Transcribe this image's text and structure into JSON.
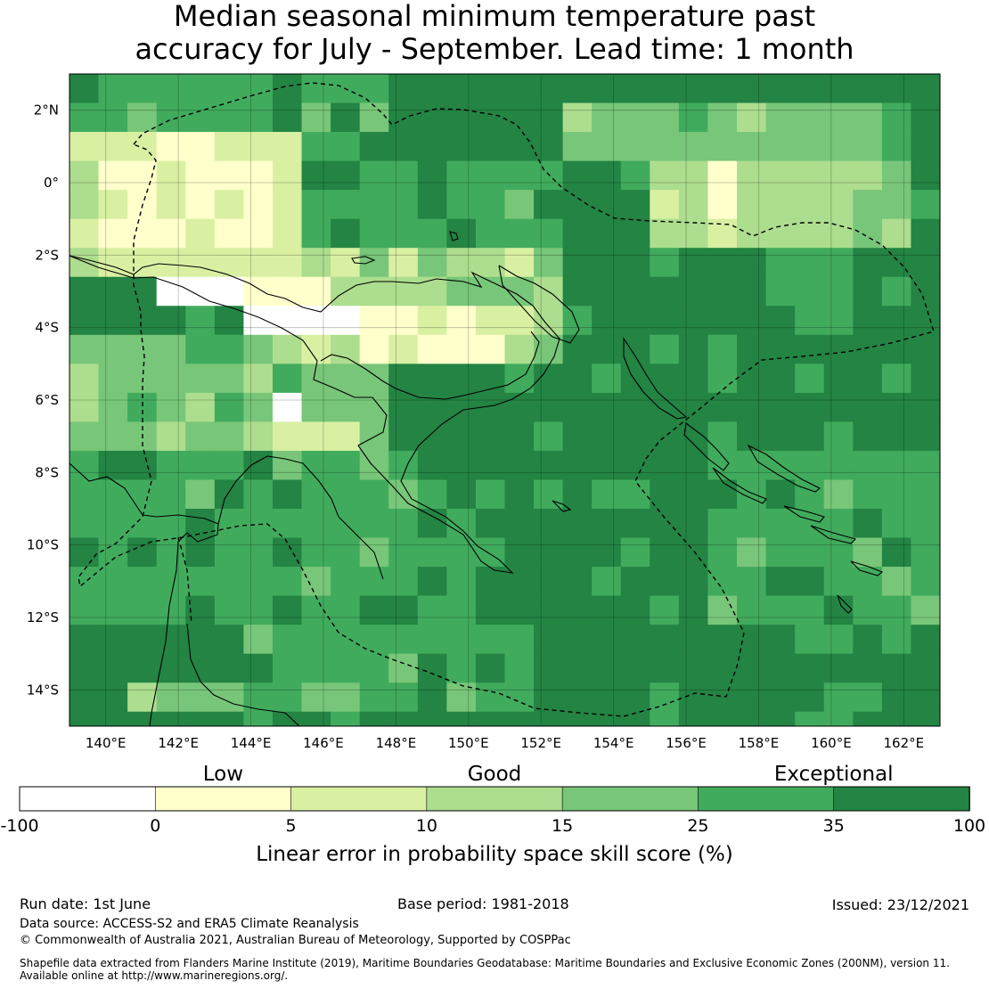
{
  "title_line1": "Median seasonal minimum temperature past",
  "title_line2": "accuracy for July - September. Lead time: 1 month",
  "map": {
    "lat_labels": [
      "2°N",
      "0°",
      "2°S",
      "4°S",
      "6°S",
      "8°S",
      "10°S",
      "12°S",
      "14°S"
    ],
    "lon_labels": [
      "140°E",
      "142°E",
      "144°E",
      "146°E",
      "148°E",
      "150°E",
      "152°E",
      "154°E",
      "156°E",
      "158°E",
      "160°E",
      "162°E"
    ],
    "lon_range": [
      139.0,
      163.0
    ],
    "lat_range": [
      -15.0,
      3.0
    ]
  },
  "legend": {
    "categories": [
      "Low",
      "Good",
      "Exceptional"
    ],
    "ticks": [
      "-100",
      "0",
      "5",
      "10",
      "15",
      "25",
      "35",
      "100"
    ],
    "colors": [
      "#ffffff",
      "#ffffcc",
      "#d9f0a3",
      "#addd8e",
      "#78c679",
      "#41ab5d",
      "#238443"
    ],
    "label": "Linear error in probability space skill score (%)"
  },
  "footer": {
    "run_date": "Run date: 1st June",
    "base_period": "Base period: 1981-2018",
    "issued": "Issued: 23/12/2021",
    "data_source": "Data source: ACCESS-S2 and ERA5 Climate Reanalysis",
    "copyright": "© Commonwealth of Australia 2021, Australian Bureau of Meteorology, Supported by COSPPac",
    "shapefile_line1": "Shapefile data extracted from Flanders Marine Institute (2019), Maritime Boundaries Geodatabase: Maritime Boundaries and Exclusive Economic Zones (200NM), version 11.",
    "shapefile_line2": "Available online at http://www.marineregions.org/."
  }
}
